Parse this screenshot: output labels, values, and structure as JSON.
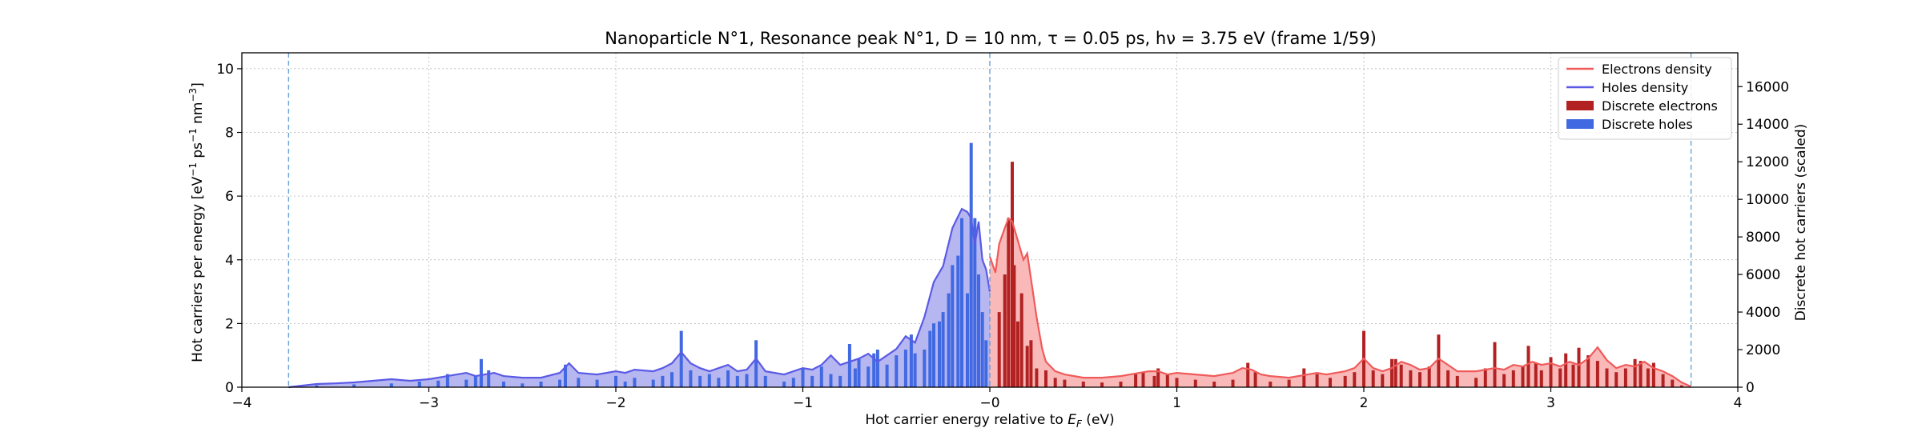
{
  "chart_data": {
    "type": "area",
    "title": "Nanoparticle N°1, Resonance peak N°1, D = 10 nm, τ = 0.05 ps, hν = 3.75 eV   (frame 1/59)",
    "xlabel": "Hot carrier energy relative to E_F (eV)",
    "xlabel_parts": {
      "pre": "Hot carrier energy relative to ",
      "sym": "E",
      "sub": "F",
      "post": " (eV)"
    },
    "ylabel": "Hot carriers per energy [eV⁻¹ ps⁻¹ nm⁻³]",
    "ylabel_parts": {
      "a": "Hot carriers per energy [eV",
      "b": "−1",
      "c": " ps",
      "d": "−1",
      "e": " nm",
      "f": "−3",
      "g": "]"
    },
    "y2label": "Discrete hot carriers (scaled)",
    "xlim": [
      -4,
      4
    ],
    "ylim": [
      0,
      10.5
    ],
    "y2lim": [
      0,
      17800
    ],
    "xticks": [
      -4,
      -3,
      -2,
      -1,
      0,
      1,
      2,
      3,
      4
    ],
    "xtick_labels": [
      "−4",
      "−3",
      "−2",
      "−1",
      "−0",
      "1",
      "2",
      "3",
      "4"
    ],
    "yticks": [
      0,
      2,
      4,
      6,
      8,
      10
    ],
    "ytick_labels": [
      "0",
      "2",
      "4",
      "6",
      "8",
      "10"
    ],
    "y2ticks": [
      0,
      2000,
      4000,
      6000,
      8000,
      10000,
      12000,
      14000,
      16000
    ],
    "y2tick_labels": [
      "0",
      "2000",
      "4000",
      "6000",
      "8000",
      "10000",
      "12000",
      "14000",
      "16000"
    ],
    "grid": true,
    "legend_position": "top-right",
    "vlines": [
      -3.75,
      0,
      3.75
    ],
    "colors": {
      "electrons_line": "#f05a5a",
      "electrons_fill": "#f9b1b1",
      "holes_line": "#5a5ae6",
      "holes_fill": "#aeaef0",
      "electrons_bar": "#b22222",
      "holes_bar": "#4169e1",
      "vline": "#6a9fd4"
    },
    "series": [
      {
        "name": "Electrons density",
        "kind": "line",
        "x": [
          0.0,
          0.03,
          0.05,
          0.08,
          0.1,
          0.12,
          0.15,
          0.18,
          0.2,
          0.22,
          0.25,
          0.28,
          0.3,
          0.35,
          0.4,
          0.5,
          0.6,
          0.7,
          0.75,
          0.8,
          0.85,
          0.9,
          0.95,
          1.0,
          1.1,
          1.2,
          1.3,
          1.35,
          1.4,
          1.45,
          1.5,
          1.6,
          1.7,
          1.75,
          1.8,
          1.9,
          1.95,
          2.0,
          2.05,
          2.1,
          2.15,
          2.2,
          2.25,
          2.3,
          2.35,
          2.4,
          2.45,
          2.5,
          2.6,
          2.7,
          2.75,
          2.8,
          2.85,
          2.9,
          2.95,
          3.0,
          3.05,
          3.1,
          3.15,
          3.2,
          3.25,
          3.3,
          3.35,
          3.4,
          3.45,
          3.5,
          3.55,
          3.6,
          3.65,
          3.7,
          3.75
        ],
        "y": [
          4.1,
          3.6,
          4.5,
          5.0,
          5.3,
          5.2,
          4.6,
          4.0,
          4.2,
          3.4,
          2.2,
          1.2,
          0.8,
          0.5,
          0.4,
          0.3,
          0.3,
          0.35,
          0.4,
          0.45,
          0.5,
          0.5,
          0.4,
          0.45,
          0.4,
          0.35,
          0.45,
          0.6,
          0.55,
          0.4,
          0.35,
          0.3,
          0.4,
          0.45,
          0.4,
          0.5,
          0.6,
          0.9,
          0.6,
          0.5,
          0.6,
          0.8,
          0.7,
          0.55,
          0.6,
          0.9,
          0.7,
          0.5,
          0.5,
          0.6,
          0.55,
          0.7,
          0.65,
          0.8,
          0.7,
          0.75,
          0.65,
          0.8,
          0.7,
          0.9,
          1.25,
          0.85,
          0.6,
          0.7,
          0.65,
          0.8,
          0.6,
          0.5,
          0.35,
          0.15,
          0.02
        ]
      },
      {
        "name": "Holes density",
        "kind": "line",
        "x": [
          -3.75,
          -3.6,
          -3.5,
          -3.4,
          -3.3,
          -3.2,
          -3.1,
          -3.0,
          -2.9,
          -2.85,
          -2.8,
          -2.75,
          -2.7,
          -2.65,
          -2.6,
          -2.5,
          -2.4,
          -2.3,
          -2.25,
          -2.2,
          -2.1,
          -2.0,
          -1.95,
          -1.9,
          -1.8,
          -1.75,
          -1.7,
          -1.65,
          -1.6,
          -1.55,
          -1.5,
          -1.45,
          -1.4,
          -1.35,
          -1.3,
          -1.25,
          -1.2,
          -1.1,
          -1.0,
          -0.95,
          -0.9,
          -0.85,
          -0.8,
          -0.75,
          -0.7,
          -0.65,
          -0.6,
          -0.55,
          -0.5,
          -0.45,
          -0.4,
          -0.35,
          -0.3,
          -0.25,
          -0.2,
          -0.15,
          -0.12,
          -0.1,
          -0.08,
          -0.06,
          -0.04,
          -0.02,
          0.0
        ],
        "y": [
          0.0,
          0.1,
          0.12,
          0.15,
          0.2,
          0.25,
          0.2,
          0.25,
          0.35,
          0.4,
          0.45,
          0.35,
          0.4,
          0.45,
          0.35,
          0.3,
          0.3,
          0.45,
          0.75,
          0.45,
          0.4,
          0.5,
          0.45,
          0.55,
          0.5,
          0.6,
          0.75,
          1.1,
          0.75,
          0.6,
          0.5,
          0.6,
          0.7,
          0.5,
          0.55,
          0.9,
          0.5,
          0.4,
          0.6,
          0.55,
          0.7,
          1.0,
          0.7,
          0.8,
          0.9,
          1.05,
          0.8,
          1.0,
          1.2,
          1.6,
          1.4,
          2.2,
          3.3,
          3.8,
          5.0,
          5.6,
          5.5,
          5.3,
          4.5,
          5.2,
          4.0,
          3.7,
          3.0
        ]
      }
    ],
    "bars": [
      {
        "name": "Discrete electrons",
        "x": [
          0.05,
          0.08,
          0.1,
          0.12,
          0.13,
          0.15,
          0.17,
          0.2,
          0.22,
          0.25,
          0.3,
          0.35,
          0.4,
          0.5,
          0.6,
          0.7,
          0.78,
          0.82,
          0.88,
          0.9,
          0.95,
          1.0,
          1.1,
          1.2,
          1.3,
          1.38,
          1.42,
          1.5,
          1.6,
          1.68,
          1.75,
          1.82,
          1.9,
          1.95,
          2.0,
          2.05,
          2.1,
          2.15,
          2.17,
          2.2,
          2.25,
          2.3,
          2.35,
          2.4,
          2.45,
          2.5,
          2.6,
          2.65,
          2.7,
          2.75,
          2.8,
          2.85,
          2.88,
          2.92,
          2.95,
          3.0,
          3.05,
          3.08,
          3.12,
          3.15,
          3.2,
          3.25,
          3.3,
          3.35,
          3.4,
          3.45,
          3.48,
          3.52,
          3.55,
          3.6,
          3.65,
          3.7
        ],
        "y": [
          4000,
          6000,
          9000,
          12000,
          6500,
          3500,
          5000,
          2200,
          2500,
          1000,
          900,
          500,
          400,
          300,
          250,
          300,
          700,
          800,
          600,
          1000,
          700,
          500,
          400,
          300,
          400,
          1300,
          800,
          300,
          400,
          1000,
          700,
          500,
          600,
          800,
          3000,
          900,
          700,
          1500,
          1500,
          1200,
          900,
          800,
          1100,
          2800,
          900,
          600,
          500,
          1000,
          2400,
          700,
          900,
          1100,
          2200,
          1300,
          900,
          1600,
          1000,
          1800,
          1200,
          2100,
          1700,
          1400,
          1000,
          800,
          1000,
          1500,
          1400,
          1000,
          1300,
          700,
          400,
          100
        ]
      },
      {
        "name": "Discrete holes",
        "x": [
          -3.6,
          -3.4,
          -3.2,
          -3.05,
          -2.95,
          -2.9,
          -2.8,
          -2.75,
          -2.72,
          -2.68,
          -2.6,
          -2.5,
          -2.4,
          -2.3,
          -2.27,
          -2.2,
          -2.1,
          -2.0,
          -1.95,
          -1.9,
          -1.8,
          -1.75,
          -1.7,
          -1.65,
          -1.6,
          -1.55,
          -1.5,
          -1.45,
          -1.4,
          -1.35,
          -1.3,
          -1.25,
          -1.2,
          -1.1,
          -1.05,
          -1.0,
          -0.95,
          -0.9,
          -0.85,
          -0.8,
          -0.75,
          -0.72,
          -0.7,
          -0.65,
          -0.62,
          -0.6,
          -0.55,
          -0.5,
          -0.45,
          -0.42,
          -0.4,
          -0.35,
          -0.32,
          -0.3,
          -0.27,
          -0.25,
          -0.22,
          -0.2,
          -0.17,
          -0.15,
          -0.12,
          -0.1,
          -0.08,
          -0.06,
          -0.04,
          -0.02
        ],
        "y": [
          100,
          150,
          200,
          300,
          350,
          700,
          400,
          600,
          1500,
          900,
          300,
          200,
          300,
          400,
          1200,
          500,
          400,
          600,
          300,
          500,
          400,
          600,
          800,
          3000,
          900,
          600,
          700,
          500,
          900,
          600,
          700,
          2500,
          600,
          300,
          500,
          1000,
          600,
          1100,
          700,
          600,
          2300,
          1000,
          1500,
          1100,
          1800,
          2000,
          1200,
          1700,
          2000,
          2800,
          1800,
          2000,
          3000,
          3400,
          3500,
          4000,
          5000,
          6500,
          7000,
          9000,
          5000,
          13000,
          9000,
          6000,
          4000,
          2500
        ]
      }
    ]
  }
}
